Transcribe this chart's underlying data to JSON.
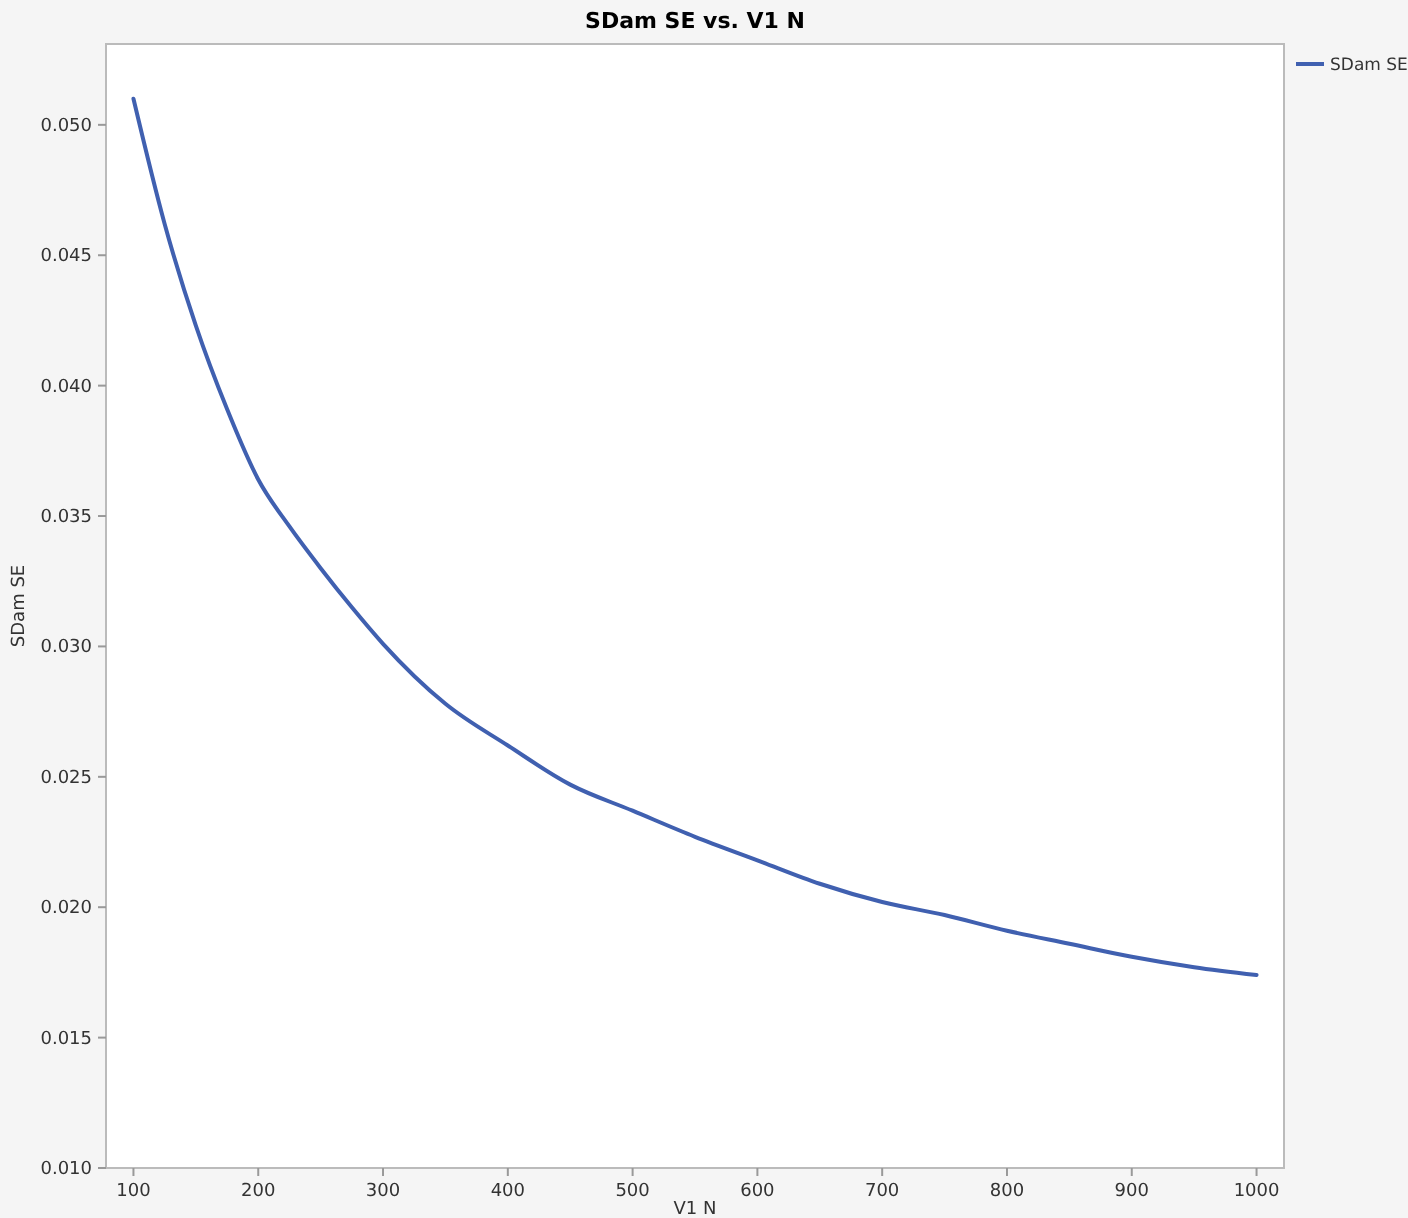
{
  "chart_data": {
    "type": "line",
    "title": "SDam SE vs. V1 N",
    "xlabel": "V1 N",
    "ylabel": "SDam SE",
    "x": [
      100,
      125,
      150,
      175,
      200,
      225,
      250,
      275,
      300,
      350,
      400,
      450,
      500,
      550,
      600,
      650,
      700,
      750,
      800,
      850,
      900,
      950,
      1000
    ],
    "series": [
      {
        "name": "SDam SE",
        "color": "#4060b0",
        "values": [
          0.051,
          0.0462,
          0.0423,
          0.0391,
          0.0364,
          0.0346,
          0.033,
          0.0315,
          0.0301,
          0.0278,
          0.0262,
          0.0247,
          0.0237,
          0.0227,
          0.0218,
          0.0209,
          0.0202,
          0.0197,
          0.0191,
          0.0186,
          0.0181,
          0.0177,
          0.0174
        ]
      }
    ],
    "xlim": [
      78,
      1022
    ],
    "ylim": [
      0.01,
      0.0531
    ],
    "xticks": [
      100,
      200,
      300,
      400,
      500,
      600,
      700,
      800,
      900,
      1000
    ],
    "yticks": [
      {
        "value": 0.01,
        "label": "0.010"
      },
      {
        "value": 0.015,
        "label": "0.015"
      },
      {
        "value": 0.02,
        "label": "0.020"
      },
      {
        "value": 0.025,
        "label": "0.025"
      },
      {
        "value": 0.03,
        "label": "0.030"
      },
      {
        "value": 0.035,
        "label": "0.035"
      },
      {
        "value": 0.04,
        "label": "0.040"
      },
      {
        "value": 0.045,
        "label": "0.045"
      },
      {
        "value": 0.05,
        "label": "0.050"
      }
    ],
    "legend": "right",
    "grid": false,
    "marker": "none",
    "line_style": "solid"
  }
}
